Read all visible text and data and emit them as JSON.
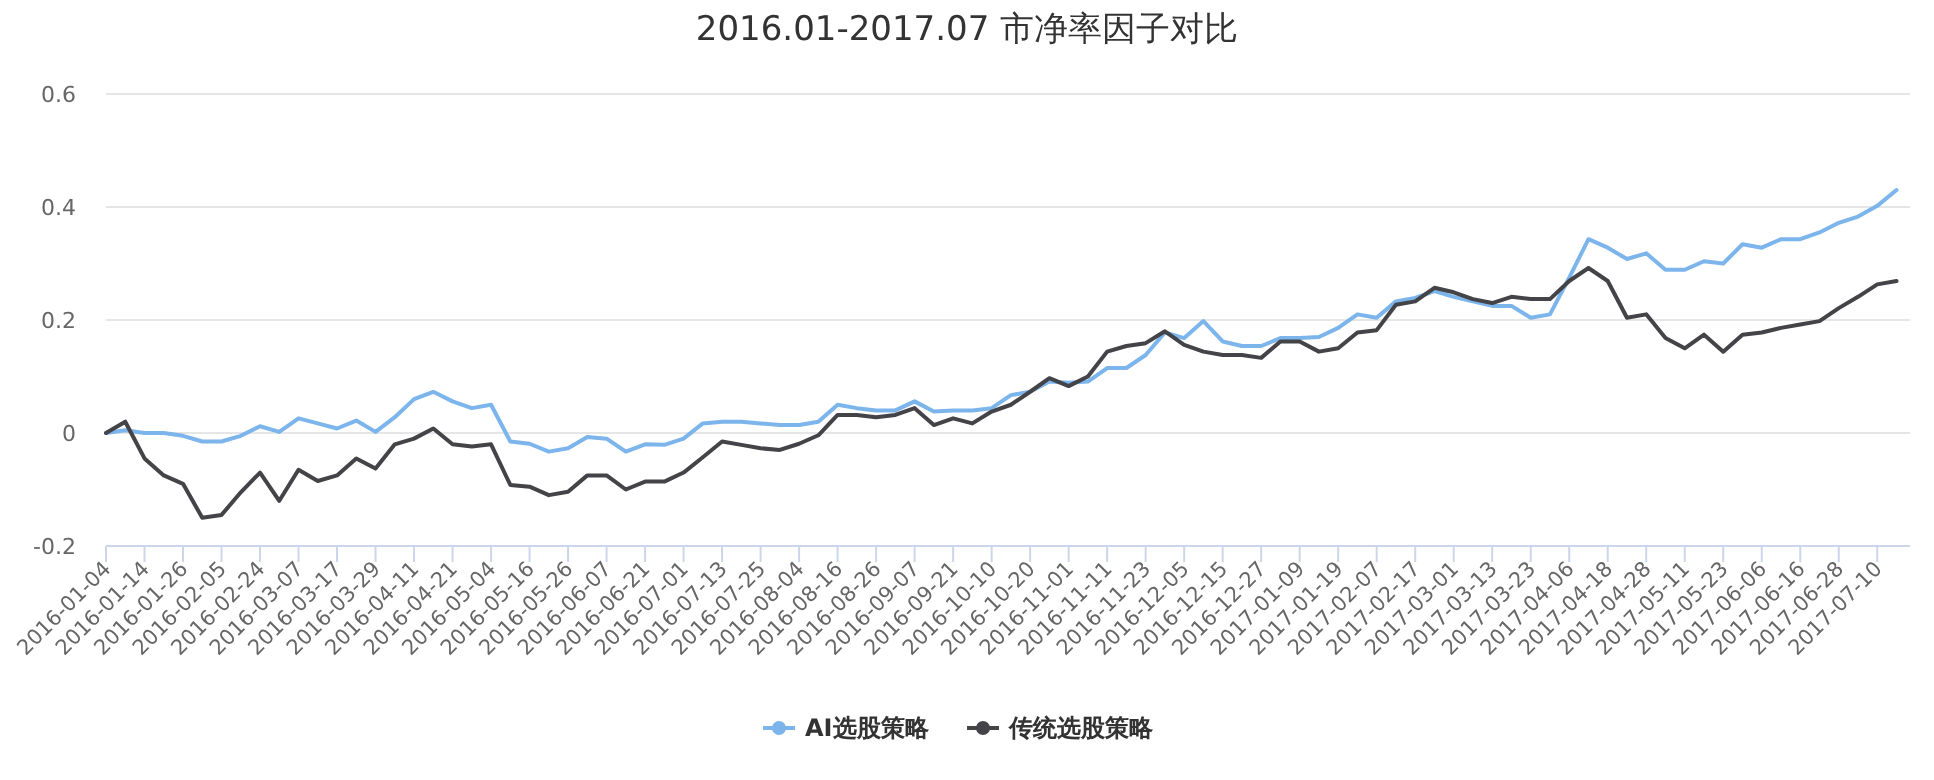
{
  "chart_data": {
    "type": "line",
    "title": "2016.01-2017.07 市净率因子对比",
    "categories": [
      "2016-01-04",
      null,
      "2016-01-14",
      null,
      "2016-01-26",
      null,
      "2016-02-05",
      null,
      "2016-02-24",
      null,
      "2016-03-07",
      null,
      "2016-03-17",
      null,
      "2016-03-29",
      null,
      "2016-04-11",
      null,
      "2016-04-21",
      null,
      "2016-05-04",
      null,
      "2016-05-16",
      null,
      "2016-05-26",
      null,
      "2016-06-07",
      null,
      "2016-06-21",
      null,
      "2016-07-01",
      null,
      "2016-07-13",
      null,
      "2016-07-25",
      null,
      "2016-08-04",
      null,
      "2016-08-16",
      null,
      "2016-08-26",
      null,
      "2016-09-07",
      null,
      "2016-09-21",
      null,
      "2016-10-10",
      null,
      "2016-10-20",
      null,
      "2016-11-01",
      null,
      "2016-11-11",
      null,
      "2016-11-23",
      null,
      "2016-12-05",
      null,
      "2016-12-15",
      null,
      "2016-12-27",
      null,
      "2017-01-09",
      null,
      "2017-01-19",
      null,
      "2017-02-07",
      null,
      "2017-02-17",
      null,
      "2017-03-01",
      null,
      "2017-03-13",
      null,
      "2017-03-23",
      null,
      "2017-04-06",
      null,
      "2017-04-18",
      null,
      "2017-04-28",
      null,
      "2017-05-11",
      null,
      "2017-05-23",
      null,
      "2017-06-06",
      null,
      "2017-06-16",
      null,
      "2017-06-28",
      null,
      "2017-07-10",
      null
    ],
    "series": [
      {
        "name": "AI选股策略",
        "color": "#7cb5ec",
        "values": [
          0,
          0.005,
          0.0,
          0.0,
          -0.005,
          -0.015,
          -0.015,
          -0.005,
          0.012,
          0.002,
          0.026,
          0.017,
          0.008,
          0.022,
          0.002,
          0.028,
          0.06,
          0.073,
          0.056,
          0.044,
          0.05,
          -0.015,
          -0.019,
          -0.033,
          -0.027,
          -0.007,
          -0.01,
          -0.033,
          -0.02,
          -0.021,
          -0.01,
          0.017,
          0.02,
          0.02,
          0.017,
          0.014,
          0.014,
          0.02,
          0.05,
          0.044,
          0.04,
          0.04,
          0.056,
          0.038,
          0.04,
          0.04,
          0.044,
          0.067,
          0.073,
          0.091,
          0.089,
          0.091,
          0.115,
          0.115,
          0.138,
          0.178,
          0.168,
          0.198,
          0.162,
          0.154,
          0.154,
          0.168,
          0.168,
          0.17,
          0.186,
          0.21,
          0.204,
          0.233,
          0.239,
          0.251,
          0.241,
          0.233,
          0.225,
          0.225,
          0.204,
          0.21,
          0.275,
          0.343,
          0.328,
          0.308,
          0.318,
          0.289,
          0.289,
          0.304,
          0.3,
          0.334,
          0.328,
          0.343,
          0.343,
          0.355,
          0.372,
          0.383,
          0.402,
          0.43
        ]
      },
      {
        "name": "传统选股策略",
        "color": "#434348",
        "values": [
          0,
          0.02,
          -0.045,
          -0.075,
          -0.09,
          -0.15,
          -0.145,
          -0.105,
          -0.07,
          -0.12,
          -0.065,
          -0.085,
          -0.075,
          -0.045,
          -0.063,
          -0.02,
          -0.01,
          0.008,
          -0.02,
          -0.024,
          -0.02,
          -0.092,
          -0.095,
          -0.11,
          -0.104,
          -0.075,
          -0.075,
          -0.1,
          -0.086,
          -0.086,
          -0.07,
          -0.043,
          -0.015,
          -0.021,
          -0.027,
          -0.03,
          -0.019,
          -0.004,
          0.032,
          0.032,
          0.028,
          0.032,
          0.044,
          0.014,
          0.026,
          0.017,
          0.038,
          0.05,
          0.073,
          0.097,
          0.083,
          0.1,
          0.144,
          0.154,
          0.159,
          0.18,
          0.156,
          0.144,
          0.138,
          0.138,
          0.133,
          0.162,
          0.162,
          0.144,
          0.15,
          0.178,
          0.182,
          0.227,
          0.233,
          0.257,
          0.249,
          0.237,
          0.23,
          0.241,
          0.237,
          0.237,
          0.269,
          0.292,
          0.269,
          0.204,
          0.21,
          0.168,
          0.15,
          0.174,
          0.144,
          0.174,
          0.178,
          0.186,
          0.192,
          0.198,
          0.221,
          0.241,
          0.263,
          0.269
        ]
      }
    ],
    "ylim": [
      -0.2,
      0.6
    ],
    "yticks": [
      -0.2,
      0,
      0.2,
      0.4,
      0.6
    ],
    "grid": "y",
    "legend": "bottom",
    "marker": "none",
    "line_style": "solid"
  }
}
